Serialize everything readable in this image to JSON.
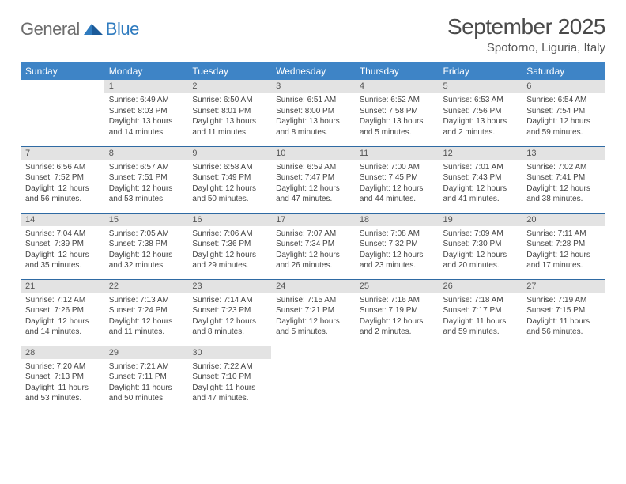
{
  "brand": {
    "text1": "General",
    "text2": "Blue"
  },
  "title": "September 2025",
  "location": "Spotorno, Liguria, Italy",
  "colors": {
    "header_bg": "#3e84c6",
    "header_text": "#ffffff",
    "daynum_bg": "#e3e3e3",
    "cell_border": "#2f6aa3",
    "logo_gray": "#6d6d6d",
    "logo_blue": "#2f7bbf"
  },
  "weekdays": [
    "Sunday",
    "Monday",
    "Tuesday",
    "Wednesday",
    "Thursday",
    "Friday",
    "Saturday"
  ],
  "layout": {
    "first_weekday_index": 1,
    "days_in_month": 30
  },
  "days": {
    "1": {
      "sunrise": "6:49 AM",
      "sunset": "8:03 PM",
      "daylight": "13 hours and 14 minutes."
    },
    "2": {
      "sunrise": "6:50 AM",
      "sunset": "8:01 PM",
      "daylight": "13 hours and 11 minutes."
    },
    "3": {
      "sunrise": "6:51 AM",
      "sunset": "8:00 PM",
      "daylight": "13 hours and 8 minutes."
    },
    "4": {
      "sunrise": "6:52 AM",
      "sunset": "7:58 PM",
      "daylight": "13 hours and 5 minutes."
    },
    "5": {
      "sunrise": "6:53 AM",
      "sunset": "7:56 PM",
      "daylight": "13 hours and 2 minutes."
    },
    "6": {
      "sunrise": "6:54 AM",
      "sunset": "7:54 PM",
      "daylight": "12 hours and 59 minutes."
    },
    "7": {
      "sunrise": "6:56 AM",
      "sunset": "7:52 PM",
      "daylight": "12 hours and 56 minutes."
    },
    "8": {
      "sunrise": "6:57 AM",
      "sunset": "7:51 PM",
      "daylight": "12 hours and 53 minutes."
    },
    "9": {
      "sunrise": "6:58 AM",
      "sunset": "7:49 PM",
      "daylight": "12 hours and 50 minutes."
    },
    "10": {
      "sunrise": "6:59 AM",
      "sunset": "7:47 PM",
      "daylight": "12 hours and 47 minutes."
    },
    "11": {
      "sunrise": "7:00 AM",
      "sunset": "7:45 PM",
      "daylight": "12 hours and 44 minutes."
    },
    "12": {
      "sunrise": "7:01 AM",
      "sunset": "7:43 PM",
      "daylight": "12 hours and 41 minutes."
    },
    "13": {
      "sunrise": "7:02 AM",
      "sunset": "7:41 PM",
      "daylight": "12 hours and 38 minutes."
    },
    "14": {
      "sunrise": "7:04 AM",
      "sunset": "7:39 PM",
      "daylight": "12 hours and 35 minutes."
    },
    "15": {
      "sunrise": "7:05 AM",
      "sunset": "7:38 PM",
      "daylight": "12 hours and 32 minutes."
    },
    "16": {
      "sunrise": "7:06 AM",
      "sunset": "7:36 PM",
      "daylight": "12 hours and 29 minutes."
    },
    "17": {
      "sunrise": "7:07 AM",
      "sunset": "7:34 PM",
      "daylight": "12 hours and 26 minutes."
    },
    "18": {
      "sunrise": "7:08 AM",
      "sunset": "7:32 PM",
      "daylight": "12 hours and 23 minutes."
    },
    "19": {
      "sunrise": "7:09 AM",
      "sunset": "7:30 PM",
      "daylight": "12 hours and 20 minutes."
    },
    "20": {
      "sunrise": "7:11 AM",
      "sunset": "7:28 PM",
      "daylight": "12 hours and 17 minutes."
    },
    "21": {
      "sunrise": "7:12 AM",
      "sunset": "7:26 PM",
      "daylight": "12 hours and 14 minutes."
    },
    "22": {
      "sunrise": "7:13 AM",
      "sunset": "7:24 PM",
      "daylight": "12 hours and 11 minutes."
    },
    "23": {
      "sunrise": "7:14 AM",
      "sunset": "7:23 PM",
      "daylight": "12 hours and 8 minutes."
    },
    "24": {
      "sunrise": "7:15 AM",
      "sunset": "7:21 PM",
      "daylight": "12 hours and 5 minutes."
    },
    "25": {
      "sunrise": "7:16 AM",
      "sunset": "7:19 PM",
      "daylight": "12 hours and 2 minutes."
    },
    "26": {
      "sunrise": "7:18 AM",
      "sunset": "7:17 PM",
      "daylight": "11 hours and 59 minutes."
    },
    "27": {
      "sunrise": "7:19 AM",
      "sunset": "7:15 PM",
      "daylight": "11 hours and 56 minutes."
    },
    "28": {
      "sunrise": "7:20 AM",
      "sunset": "7:13 PM",
      "daylight": "11 hours and 53 minutes."
    },
    "29": {
      "sunrise": "7:21 AM",
      "sunset": "7:11 PM",
      "daylight": "11 hours and 50 minutes."
    },
    "30": {
      "sunrise": "7:22 AM",
      "sunset": "7:10 PM",
      "daylight": "11 hours and 47 minutes."
    }
  },
  "labels": {
    "sunrise": "Sunrise:",
    "sunset": "Sunset:",
    "daylight": "Daylight:"
  }
}
